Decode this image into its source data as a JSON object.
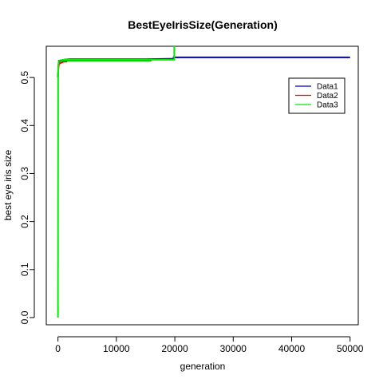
{
  "chart_data": {
    "type": "line",
    "title": "BestEyeIrisSize(Generation)",
    "xlabel": "generation",
    "ylabel": "best eye iris size",
    "xlim": [
      -2000,
      51400
    ],
    "ylim": [
      -0.015,
      0.565
    ],
    "x_ticks": [
      0,
      10000,
      20000,
      30000,
      40000,
      50000
    ],
    "x_tick_labels": [
      "0",
      "10000",
      "20000",
      "30000",
      "40000",
      "50000"
    ],
    "y_ticks": [
      0.0,
      0.1,
      0.2,
      0.3,
      0.4,
      0.5
    ],
    "y_tick_labels": [
      "0.0",
      "0.1",
      "0.2",
      "0.3",
      "0.4",
      "0.5"
    ],
    "legend_position": "top-right",
    "grid": false,
    "series": [
      {
        "name": "Data1",
        "color": "#0000cc",
        "x": [
          0,
          60,
          100,
          200,
          300,
          500,
          700,
          1000,
          2000,
          5000,
          10000,
          15000,
          19800,
          19800,
          30000,
          40000,
          50000
        ],
        "y": [
          0.5,
          0.52,
          0.528,
          0.532,
          0.534,
          0.535,
          0.536,
          0.537,
          0.538,
          0.538,
          0.538,
          0.538,
          0.539,
          0.542,
          0.542,
          0.542,
          0.542
        ]
      },
      {
        "name": "Data2",
        "color": "#ff0000",
        "x": [
          0,
          50,
          100,
          200,
          400,
          600,
          800,
          1000,
          1600
        ],
        "y": [
          0.503,
          0.515,
          0.523,
          0.528,
          0.53,
          0.531,
          0.532,
          0.533,
          0.533
        ]
      },
      {
        "name": "Data3",
        "color": "#00ee00",
        "x": [
          0,
          30,
          60,
          100,
          150,
          250,
          400,
          700,
          1000,
          3000,
          8000,
          16000,
          19900,
          19900,
          20000
        ],
        "y": [
          0.0,
          0.5,
          0.522,
          0.53,
          0.533,
          0.535,
          0.536,
          0.536,
          0.537,
          0.537,
          0.537,
          0.537,
          0.537,
          0.565,
          0.565
        ]
      }
    ],
    "overlays": [
      {
        "color": "#00cc00",
        "x": [
          0,
          16000
        ],
        "y": [
          0.535,
          0.535
        ]
      }
    ]
  }
}
